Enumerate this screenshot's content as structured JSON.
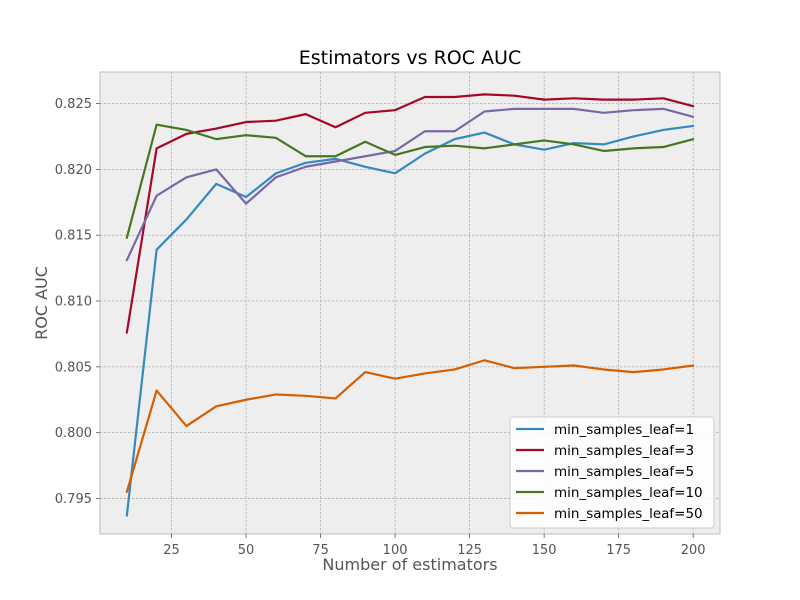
{
  "chart_data": {
    "type": "line",
    "title": "Estimators vs ROC AUC",
    "xlabel": "Number of estimators",
    "ylabel": "ROC AUC",
    "xlim": [
      1,
      209
    ],
    "ylim": [
      0.7923,
      0.8274
    ],
    "xticks": [
      25,
      50,
      75,
      100,
      125,
      150,
      175,
      200
    ],
    "yticks": [
      0.795,
      0.8,
      0.805,
      0.81,
      0.815,
      0.82,
      0.825
    ],
    "ytick_labels": [
      "0.795",
      "0.800",
      "0.805",
      "0.810",
      "0.815",
      "0.820",
      "0.825"
    ],
    "grid": true,
    "legend_position": "lower-right",
    "x": [
      10,
      20,
      30,
      40,
      50,
      60,
      70,
      80,
      90,
      100,
      110,
      120,
      130,
      140,
      150,
      160,
      170,
      180,
      190,
      200
    ],
    "series": [
      {
        "name": "min_samples_leaf=1",
        "color": "#348ABD",
        "values": [
          0.7937,
          0.8139,
          0.8162,
          0.8189,
          0.8179,
          0.8197,
          0.8205,
          0.8208,
          0.8202,
          0.8197,
          0.8212,
          0.8223,
          0.8228,
          0.8219,
          0.8215,
          0.822,
          0.8219,
          0.8225,
          0.823,
          0.8233
        ]
      },
      {
        "name": "min_samples_leaf=3",
        "color": "#A60628",
        "values": [
          0.8076,
          0.8216,
          0.8227,
          0.8231,
          0.8236,
          0.8237,
          0.8242,
          0.8232,
          0.8243,
          0.8245,
          0.8255,
          0.8255,
          0.8257,
          0.8256,
          0.8253,
          0.8254,
          0.8253,
          0.8253,
          0.8254,
          0.8248
        ]
      },
      {
        "name": "min_samples_leaf=5",
        "color": "#7A68A6",
        "values": [
          0.8131,
          0.818,
          0.8194,
          0.82,
          0.8174,
          0.8194,
          0.8202,
          0.8206,
          0.821,
          0.8214,
          0.8229,
          0.8229,
          0.8244,
          0.8246,
          0.8246,
          0.8246,
          0.8243,
          0.8245,
          0.8246,
          0.824
        ]
      },
      {
        "name": "min_samples_leaf=10",
        "color": "#467821",
        "values": [
          0.8148,
          0.8234,
          0.823,
          0.8223,
          0.8226,
          0.8224,
          0.821,
          0.821,
          0.8221,
          0.8211,
          0.8217,
          0.8218,
          0.8216,
          0.8219,
          0.8222,
          0.8219,
          0.8214,
          0.8216,
          0.8217,
          0.8223
        ]
      },
      {
        "name": "min_samples_leaf=50",
        "color": "#D55E00",
        "values": [
          0.7955,
          0.8032,
          0.8005,
          0.802,
          0.8025,
          0.8029,
          0.8028,
          0.8026,
          0.8046,
          0.8041,
          0.8045,
          0.8048,
          0.8055,
          0.8049,
          0.805,
          0.8051,
          0.8048,
          0.8046,
          0.8048,
          0.8051
        ]
      }
    ]
  }
}
